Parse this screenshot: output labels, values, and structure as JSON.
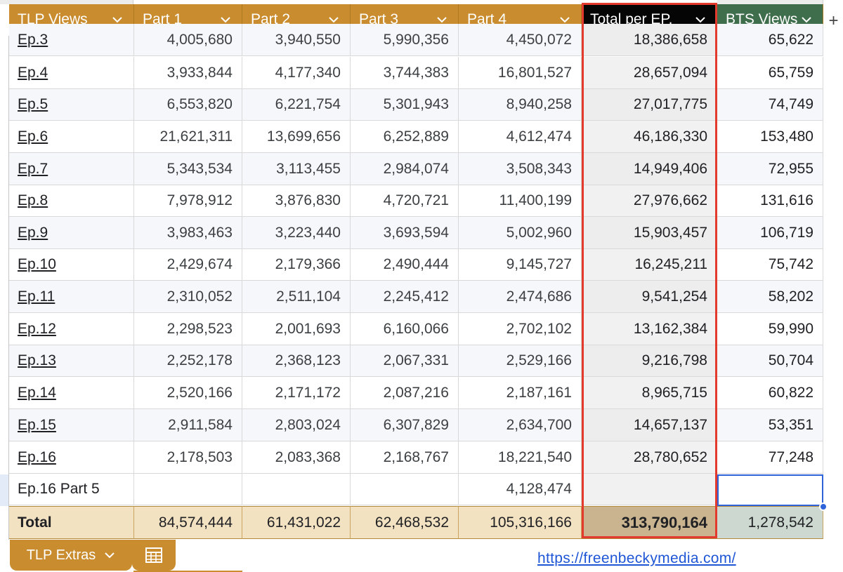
{
  "columns": [
    {
      "label": "TLP Views",
      "style": "gold",
      "left": 13,
      "width": 178
    },
    {
      "label": "Part 1",
      "style": "gold",
      "left": 191,
      "width": 154
    },
    {
      "label": "Part 2",
      "style": "gold",
      "left": 345,
      "width": 154
    },
    {
      "label": "Part 3",
      "style": "gold",
      "left": 499,
      "width": 154
    },
    {
      "label": "Part 4",
      "style": "gold",
      "left": 653,
      "width": 175
    },
    {
      "label": "Total per EP.",
      "style": "black",
      "left": 828,
      "width": 193
    },
    {
      "label": "BTS Views",
      "style": "green",
      "left": 1021,
      "width": 151
    }
  ],
  "rows": [
    {
      "ep": "Ep.3",
      "p1": "4,005,680",
      "p2": "3,940,550",
      "p3": "5,990,356",
      "p4": "4,450,072",
      "total": "18,386,658",
      "bts": "65,622"
    },
    {
      "ep": "Ep.4",
      "p1": "3,933,844",
      "p2": "4,177,340",
      "p3": "3,744,383",
      "p4": "16,801,527",
      "total": "28,657,094",
      "bts": "65,759"
    },
    {
      "ep": "Ep.5",
      "p1": "6,553,820",
      "p2": "6,221,754",
      "p3": "5,301,943",
      "p4": "8,940,258",
      "total": "27,017,775",
      "bts": "74,749"
    },
    {
      "ep": "Ep.6",
      "p1": "21,621,311",
      "p2": "13,699,656",
      "p3": "6,252,889",
      "p4": "4,612,474",
      "total": "46,186,330",
      "bts": "153,480"
    },
    {
      "ep": "Ep.7",
      "p1": "5,343,534",
      "p2": "3,113,455",
      "p3": "2,984,074",
      "p4": "3,508,343",
      "total": "14,949,406",
      "bts": "72,955"
    },
    {
      "ep": "Ep.8",
      "p1": "7,978,912",
      "p2": "3,876,830",
      "p3": "4,720,721",
      "p4": "11,400,199",
      "total": "27,976,662",
      "bts": "131,616"
    },
    {
      "ep": "Ep.9",
      "p1": "3,983,463",
      "p2": "3,223,440",
      "p3": "3,693,594",
      "p4": "5,002,960",
      "total": "15,903,457",
      "bts": "106,719"
    },
    {
      "ep": "Ep.10",
      "p1": "2,429,674",
      "p2": "2,179,366",
      "p3": "2,490,444",
      "p4": "9,145,727",
      "total": "16,245,211",
      "bts": "75,742"
    },
    {
      "ep": "Ep.11",
      "p1": "2,310,052",
      "p2": "2,511,104",
      "p3": "2,245,412",
      "p4": "2,474,686",
      "total": "9,541,254",
      "bts": "58,202"
    },
    {
      "ep": "Ep.12",
      "p1": "2,298,523",
      "p2": "2,001,693",
      "p3": "6,160,066",
      "p4": "2,702,102",
      "total": "13,162,384",
      "bts": "59,990"
    },
    {
      "ep": "Ep.13",
      "p1": "2,252,178",
      "p2": "2,368,123",
      "p3": "2,067,331",
      "p4": "2,529,166",
      "total": "9,216,798",
      "bts": "50,704"
    },
    {
      "ep": "Ep.14",
      "p1": "2,520,166",
      "p2": "2,171,172",
      "p3": "2,087,216",
      "p4": "2,187,161",
      "total": "8,965,715",
      "bts": "60,822"
    },
    {
      "ep": "Ep.15",
      "p1": "2,911,584",
      "p2": "2,803,024",
      "p3": "6,307,829",
      "p4": "2,634,700",
      "total": "14,657,137",
      "bts": "53,351"
    },
    {
      "ep": "Ep.16",
      "p1": "2,178,503",
      "p2": "2,083,368",
      "p3": "2,168,767",
      "p4": "18,221,540",
      "total": "28,780,652",
      "bts": "77,248"
    },
    {
      "ep": "Ep.16 Part 5",
      "p1": "",
      "p2": "",
      "p3": "",
      "p4": "4,128,474",
      "total": "",
      "bts": "",
      "plain": true
    }
  ],
  "totals": {
    "label": "Total",
    "p1": "84,574,444",
    "p2": "61,431,022",
    "p3": "62,468,532",
    "p4": "105,316,166",
    "total": "313,790,164",
    "bts": "1,278,542"
  },
  "toolbar": {
    "add_label": "+"
  },
  "tabs": {
    "extras_label": "TLP  Extras"
  },
  "footer": {
    "link": "https://freenbeckymedia.com/"
  },
  "colors": {
    "gold": "#c98c2e",
    "black": "#050505",
    "green": "#3f6e4c",
    "highlight": "#e23b2e",
    "selection": "#2f63d9"
  },
  "icons": {
    "sort": "chevron-down-icon",
    "sheets": "sheet-list-icon"
  }
}
